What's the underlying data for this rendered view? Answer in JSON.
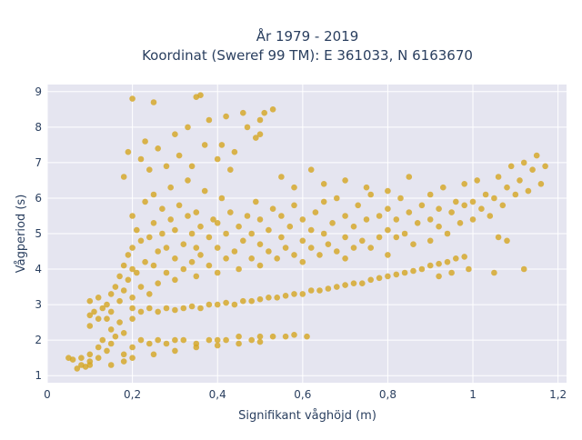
{
  "chart_data": {
    "type": "scatter",
    "title": "År 1979 - 2019",
    "subtitle": "Koordinat (Sweref 99 TM): E 361033, N 6163670",
    "xlabel": "Signifikant våghöjd (m)",
    "ylabel": "Vågperiod (s)",
    "xlim": [
      0,
      1.22
    ],
    "ylim": [
      0.8,
      9.2
    ],
    "x_ticks": [
      {
        "value": 0,
        "label": "0"
      },
      {
        "value": 0.2,
        "label": "0,2"
      },
      {
        "value": 0.4,
        "label": "0,4"
      },
      {
        "value": 0.6,
        "label": "0,6"
      },
      {
        "value": 0.8,
        "label": "0,8"
      },
      {
        "value": 1.0,
        "label": "1"
      },
      {
        "value": 1.2,
        "label": "1,2"
      }
    ],
    "y_ticks": [
      {
        "value": 1,
        "label": "1"
      },
      {
        "value": 2,
        "label": "2"
      },
      {
        "value": 3,
        "label": "3"
      },
      {
        "value": 4,
        "label": "4"
      },
      {
        "value": 5,
        "label": "5"
      },
      {
        "value": 6,
        "label": "6"
      },
      {
        "value": 7,
        "label": "7"
      },
      {
        "value": 8,
        "label": "8"
      },
      {
        "value": 9,
        "label": "9"
      }
    ],
    "grid": true,
    "legend": false,
    "colors": {
      "marker": "#d4a520",
      "plot_bg": "#e5e5f0",
      "grid": "#ffffff",
      "text": "#2a3f5f"
    },
    "series": [
      {
        "values": [
          [
            0.05,
            1.5
          ],
          [
            0.06,
            1.45
          ],
          [
            0.07,
            1.2
          ],
          [
            0.08,
            1.5
          ],
          [
            0.08,
            1.3
          ],
          [
            0.09,
            1.25
          ],
          [
            0.1,
            1.6
          ],
          [
            0.1,
            1.4
          ],
          [
            0.1,
            1.3
          ],
          [
            0.12,
            1.8
          ],
          [
            0.12,
            1.5
          ],
          [
            0.13,
            2.0
          ],
          [
            0.14,
            1.7
          ],
          [
            0.15,
            2.3
          ],
          [
            0.15,
            1.9
          ],
          [
            0.16,
            2.1
          ],
          [
            0.17,
            2.5
          ],
          [
            0.18,
            2.2
          ],
          [
            0.18,
            1.6
          ],
          [
            0.2,
            2.6
          ],
          [
            0.2,
            1.8
          ],
          [
            0.22,
            2.0
          ],
          [
            0.24,
            1.9
          ],
          [
            0.26,
            2.0
          ],
          [
            0.28,
            1.9
          ],
          [
            0.3,
            2.0
          ],
          [
            0.32,
            2.0
          ],
          [
            0.35,
            1.9
          ],
          [
            0.38,
            2.0
          ],
          [
            0.4,
            2.0
          ],
          [
            0.42,
            2.0
          ],
          [
            0.45,
            2.1
          ],
          [
            0.48,
            2.0
          ],
          [
            0.5,
            2.1
          ],
          [
            0.53,
            2.1
          ],
          [
            0.56,
            2.1
          ],
          [
            0.58,
            2.15
          ],
          [
            0.61,
            2.1
          ],
          [
            0.1,
            2.4
          ],
          [
            0.1,
            2.7
          ],
          [
            0.1,
            3.1
          ],
          [
            0.11,
            2.8
          ],
          [
            0.12,
            2.6
          ],
          [
            0.12,
            3.2
          ],
          [
            0.13,
            2.9
          ],
          [
            0.14,
            3.0
          ],
          [
            0.14,
            2.6
          ],
          [
            0.15,
            3.3
          ],
          [
            0.15,
            2.8
          ],
          [
            0.16,
            3.5
          ],
          [
            0.17,
            3.1
          ],
          [
            0.17,
            3.8
          ],
          [
            0.18,
            3.4
          ],
          [
            0.18,
            4.1
          ],
          [
            0.19,
            3.7
          ],
          [
            0.19,
            4.4
          ],
          [
            0.2,
            3.2
          ],
          [
            0.2,
            4.0
          ],
          [
            0.2,
            4.6
          ],
          [
            0.2,
            5.5
          ],
          [
            0.21,
            3.9
          ],
          [
            0.21,
            5.1
          ],
          [
            0.22,
            3.5
          ],
          [
            0.22,
            4.8
          ],
          [
            0.23,
            4.2
          ],
          [
            0.23,
            5.9
          ],
          [
            0.24,
            3.3
          ],
          [
            0.24,
            4.9
          ],
          [
            0.25,
            4.1
          ],
          [
            0.25,
            5.3
          ],
          [
            0.25,
            6.1
          ],
          [
            0.26,
            3.6
          ],
          [
            0.26,
            4.5
          ],
          [
            0.27,
            5.0
          ],
          [
            0.27,
            5.7
          ],
          [
            0.28,
            3.9
          ],
          [
            0.28,
            4.6
          ],
          [
            0.29,
            5.4
          ],
          [
            0.29,
            6.3
          ],
          [
            0.3,
            3.7
          ],
          [
            0.3,
            4.3
          ],
          [
            0.3,
            5.1
          ],
          [
            0.31,
            5.8
          ],
          [
            0.32,
            4.0
          ],
          [
            0.32,
            4.7
          ],
          [
            0.33,
            5.5
          ],
          [
            0.33,
            6.5
          ],
          [
            0.34,
            4.2
          ],
          [
            0.34,
            5.0
          ],
          [
            0.35,
            3.8
          ],
          [
            0.35,
            4.6
          ],
          [
            0.35,
            5.6
          ],
          [
            0.36,
            4.4
          ],
          [
            0.36,
            5.2
          ],
          [
            0.37,
            6.2
          ],
          [
            0.38,
            4.1
          ],
          [
            0.38,
            4.9
          ],
          [
            0.39,
            5.4
          ],
          [
            0.4,
            3.9
          ],
          [
            0.4,
            4.6
          ],
          [
            0.4,
            5.3
          ],
          [
            0.41,
            6.0
          ],
          [
            0.42,
            4.3
          ],
          [
            0.42,
            5.0
          ],
          [
            0.43,
            5.6
          ],
          [
            0.44,
            4.5
          ],
          [
            0.45,
            4.0
          ],
          [
            0.45,
            5.2
          ],
          [
            0.46,
            4.8
          ],
          [
            0.47,
            5.5
          ],
          [
            0.48,
            4.3
          ],
          [
            0.48,
            5.0
          ],
          [
            0.49,
            5.9
          ],
          [
            0.5,
            4.1
          ],
          [
            0.5,
            4.7
          ],
          [
            0.5,
            5.4
          ],
          [
            0.52,
            4.5
          ],
          [
            0.52,
            5.1
          ],
          [
            0.53,
            5.7
          ],
          [
            0.54,
            4.3
          ],
          [
            0.55,
            4.9
          ],
          [
            0.55,
            5.5
          ],
          [
            0.56,
            4.6
          ],
          [
            0.57,
            5.2
          ],
          [
            0.58,
            4.4
          ],
          [
            0.58,
            5.8
          ],
          [
            0.6,
            4.2
          ],
          [
            0.6,
            4.8
          ],
          [
            0.6,
            5.4
          ],
          [
            0.62,
            4.6
          ],
          [
            0.62,
            5.1
          ],
          [
            0.63,
            5.6
          ],
          [
            0.64,
            4.4
          ],
          [
            0.65,
            5.0
          ],
          [
            0.65,
            5.9
          ],
          [
            0.66,
            4.7
          ],
          [
            0.67,
            5.3
          ],
          [
            0.68,
            4.5
          ],
          [
            0.68,
            6.0
          ],
          [
            0.7,
            4.3
          ],
          [
            0.7,
            4.9
          ],
          [
            0.7,
            5.5
          ],
          [
            0.72,
            4.6
          ],
          [
            0.72,
            5.2
          ],
          [
            0.73,
            5.8
          ],
          [
            0.74,
            4.8
          ],
          [
            0.75,
            5.4
          ],
          [
            0.76,
            4.6
          ],
          [
            0.76,
            6.1
          ],
          [
            0.78,
            4.9
          ],
          [
            0.78,
            5.5
          ],
          [
            0.8,
            4.4
          ],
          [
            0.8,
            5.1
          ],
          [
            0.8,
            5.7
          ],
          [
            0.82,
            4.9
          ],
          [
            0.82,
            5.4
          ],
          [
            0.83,
            6.0
          ],
          [
            0.84,
            5.0
          ],
          [
            0.85,
            5.6
          ],
          [
            0.86,
            4.7
          ],
          [
            0.87,
            5.3
          ],
          [
            0.88,
            5.8
          ],
          [
            0.9,
            4.8
          ],
          [
            0.9,
            5.4
          ],
          [
            0.9,
            6.1
          ],
          [
            0.92,
            5.2
          ],
          [
            0.92,
            5.7
          ],
          [
            0.93,
            6.3
          ],
          [
            0.94,
            5.0
          ],
          [
            0.95,
            5.6
          ],
          [
            0.96,
            5.9
          ],
          [
            0.97,
            5.3
          ],
          [
            0.98,
            5.8
          ],
          [
            0.98,
            6.4
          ],
          [
            1.0,
            5.4
          ],
          [
            1.0,
            5.9
          ],
          [
            1.01,
            6.5
          ],
          [
            1.02,
            5.7
          ],
          [
            1.03,
            6.1
          ],
          [
            1.04,
            5.5
          ],
          [
            1.05,
            6.0
          ],
          [
            1.06,
            6.6
          ],
          [
            1.07,
            5.8
          ],
          [
            1.08,
            6.3
          ],
          [
            1.09,
            6.9
          ],
          [
            1.1,
            6.1
          ],
          [
            1.11,
            6.5
          ],
          [
            1.12,
            7.0
          ],
          [
            1.13,
            6.2
          ],
          [
            1.14,
            6.8
          ],
          [
            1.15,
            7.2
          ],
          [
            1.16,
            6.4
          ],
          [
            1.17,
            6.9
          ],
          [
            0.2,
            2.9
          ],
          [
            0.22,
            2.8
          ],
          [
            0.24,
            2.9
          ],
          [
            0.26,
            2.8
          ],
          [
            0.28,
            2.9
          ],
          [
            0.3,
            2.85
          ],
          [
            0.32,
            2.9
          ],
          [
            0.34,
            2.95
          ],
          [
            0.36,
            2.9
          ],
          [
            0.38,
            3.0
          ],
          [
            0.4,
            3.0
          ],
          [
            0.42,
            3.05
          ],
          [
            0.44,
            3.0
          ],
          [
            0.46,
            3.1
          ],
          [
            0.48,
            3.1
          ],
          [
            0.5,
            3.15
          ],
          [
            0.52,
            3.2
          ],
          [
            0.54,
            3.2
          ],
          [
            0.56,
            3.25
          ],
          [
            0.58,
            3.3
          ],
          [
            0.6,
            3.3
          ],
          [
            0.62,
            3.4
          ],
          [
            0.64,
            3.4
          ],
          [
            0.66,
            3.45
          ],
          [
            0.68,
            3.5
          ],
          [
            0.7,
            3.55
          ],
          [
            0.72,
            3.6
          ],
          [
            0.74,
            3.6
          ],
          [
            0.76,
            3.7
          ],
          [
            0.78,
            3.75
          ],
          [
            0.8,
            3.8
          ],
          [
            0.82,
            3.85
          ],
          [
            0.84,
            3.9
          ],
          [
            0.86,
            3.95
          ],
          [
            0.88,
            4.0
          ],
          [
            0.9,
            4.1
          ],
          [
            0.92,
            4.15
          ],
          [
            0.94,
            4.2
          ],
          [
            0.96,
            4.3
          ],
          [
            0.98,
            4.35
          ],
          [
            0.15,
            1.3
          ],
          [
            0.18,
            1.4
          ],
          [
            0.2,
            1.5
          ],
          [
            0.25,
            1.6
          ],
          [
            0.3,
            1.7
          ],
          [
            0.35,
            1.8
          ],
          [
            0.4,
            1.85
          ],
          [
            0.45,
            1.9
          ],
          [
            0.5,
            1.95
          ],
          [
            0.18,
            6.6
          ],
          [
            0.19,
            7.3
          ],
          [
            0.2,
            8.8
          ],
          [
            0.22,
            7.1
          ],
          [
            0.23,
            7.6
          ],
          [
            0.24,
            6.8
          ],
          [
            0.25,
            8.7
          ],
          [
            0.26,
            7.4
          ],
          [
            0.28,
            6.9
          ],
          [
            0.3,
            7.8
          ],
          [
            0.31,
            7.2
          ],
          [
            0.33,
            8.0
          ],
          [
            0.34,
            6.9
          ],
          [
            0.35,
            8.85
          ],
          [
            0.36,
            8.9
          ],
          [
            0.37,
            7.5
          ],
          [
            0.38,
            8.2
          ],
          [
            0.4,
            7.1
          ],
          [
            0.41,
            7.5
          ],
          [
            0.42,
            8.3
          ],
          [
            0.43,
            6.8
          ],
          [
            0.44,
            7.3
          ],
          [
            0.46,
            8.4
          ],
          [
            0.47,
            8.0
          ],
          [
            0.49,
            7.7
          ],
          [
            0.5,
            8.2
          ],
          [
            0.5,
            7.8
          ],
          [
            0.51,
            8.4
          ],
          [
            0.53,
            8.5
          ],
          [
            0.55,
            6.6
          ],
          [
            0.58,
            6.3
          ],
          [
            0.62,
            6.8
          ],
          [
            0.65,
            6.4
          ],
          [
            0.7,
            6.5
          ],
          [
            0.75,
            6.3
          ],
          [
            0.8,
            6.2
          ],
          [
            0.85,
            6.6
          ],
          [
            1.12,
            4.0
          ],
          [
            1.05,
            3.9
          ],
          [
            0.99,
            4.0
          ],
          [
            1.08,
            4.8
          ],
          [
            1.06,
            4.9
          ],
          [
            0.95,
            3.9
          ],
          [
            0.92,
            3.8
          ]
        ]
      }
    ]
  }
}
